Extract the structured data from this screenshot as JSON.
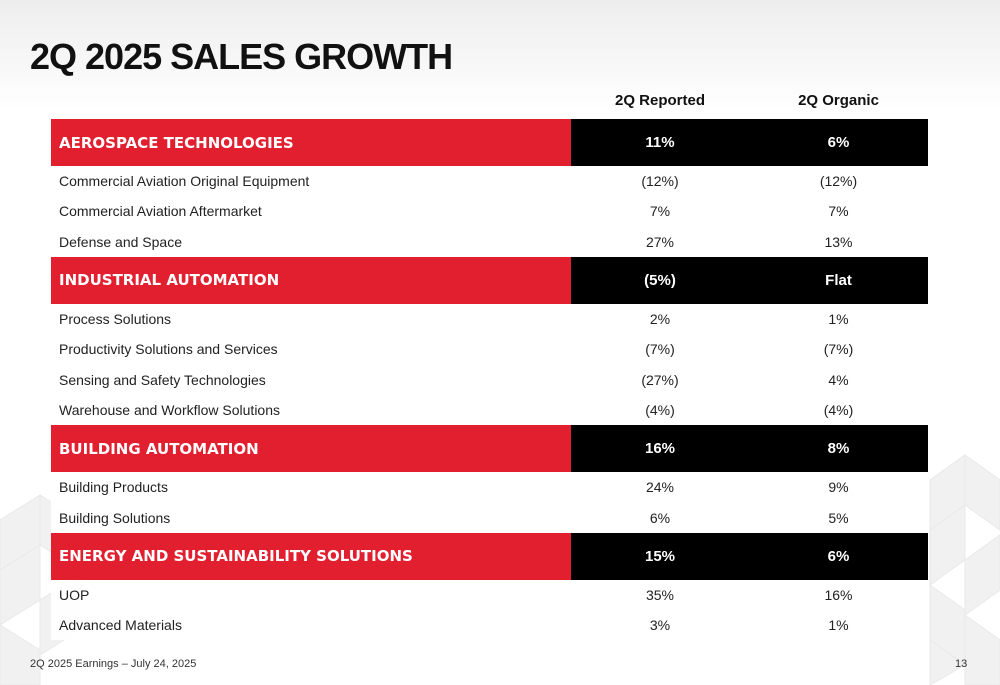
{
  "title": "2Q 2025 SALES GROWTH",
  "columns": {
    "reported": "2Q Reported",
    "organic": "2Q Organic"
  },
  "segments": [
    {
      "name": "AEROSPACE TECHNOLOGIES",
      "reported": "11%",
      "organic": "6%",
      "rows": [
        {
          "name": "Commercial Aviation Original Equipment",
          "reported": "(12%)",
          "organic": "(12%)"
        },
        {
          "name": "Commercial Aviation Aftermarket",
          "reported": "7%",
          "organic": "7%"
        },
        {
          "name": "Defense and Space",
          "reported": "27%",
          "organic": "13%"
        }
      ]
    },
    {
      "name": "INDUSTRIAL AUTOMATION",
      "reported": "(5%)",
      "organic": "Flat",
      "rows": [
        {
          "name": "Process Solutions",
          "reported": "2%",
          "organic": "1%"
        },
        {
          "name": "Productivity Solutions and Services",
          "reported": "(7%)",
          "organic": "(7%)"
        },
        {
          "name": "Sensing and Safety Technologies",
          "reported": "(27%)",
          "organic": "4%"
        },
        {
          "name": "Warehouse and Workflow Solutions",
          "reported": "(4%)",
          "organic": "(4%)"
        }
      ]
    },
    {
      "name": "BUILDING AUTOMATION",
      "reported": "16%",
      "organic": "8%",
      "rows": [
        {
          "name": "Building Products",
          "reported": "24%",
          "organic": "9%"
        },
        {
          "name": "Building Solutions",
          "reported": "6%",
          "organic": "5%"
        }
      ]
    },
    {
      "name": "ENERGY AND SUSTAINABILITY SOLUTIONS",
      "reported": "15%",
      "organic": "6%",
      "rows": [
        {
          "name": "UOP",
          "reported": "35%",
          "organic": "16%"
        },
        {
          "name": "Advanced Materials",
          "reported": "3%",
          "organic": "1%"
        }
      ]
    }
  ],
  "footer": "2Q 2025 Earnings – July 24, 2025",
  "page_number": "13",
  "colors": {
    "accent_red": "#e21f2f",
    "value_black": "#000000"
  }
}
